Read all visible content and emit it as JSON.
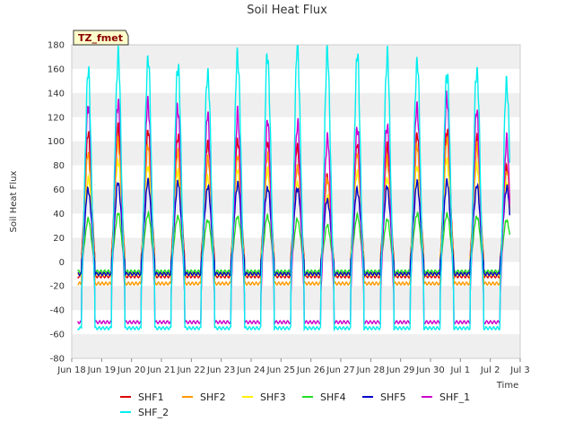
{
  "chart_data": {
    "type": "line",
    "title": "Soil Heat Flux",
    "xlabel": "Time",
    "ylabel": "Soil Heat Flux",
    "ylim": [
      -80,
      180
    ],
    "yticks": [
      -80,
      -60,
      -40,
      -20,
      0,
      20,
      40,
      60,
      80,
      100,
      120,
      140,
      160,
      180
    ],
    "xlim": [
      0,
      15
    ],
    "xticks": [
      {
        "pos": 0,
        "label": "Jun 18"
      },
      {
        "pos": 1,
        "label": "Jun 19"
      },
      {
        "pos": 2,
        "label": "Jun 20"
      },
      {
        "pos": 3,
        "label": "Jun 21"
      },
      {
        "pos": 4,
        "label": "Jun 22"
      },
      {
        "pos": 5,
        "label": "Jun 23"
      },
      {
        "pos": 6,
        "label": "Jun 24"
      },
      {
        "pos": 7,
        "label": "Jun 25"
      },
      {
        "pos": 8,
        "label": "Jun 26"
      },
      {
        "pos": 9,
        "label": "Jun 27"
      },
      {
        "pos": 10,
        "label": "Jun 28"
      },
      {
        "pos": 11,
        "label": "Jun 29"
      },
      {
        "pos": 12,
        "label": "Jun 30"
      },
      {
        "pos": 13,
        "label": "Jul 1"
      },
      {
        "pos": 14,
        "label": "Jul 2"
      },
      {
        "pos": 15,
        "label": "Jul 3"
      }
    ],
    "data_start": 0.2,
    "data_end": 14.65,
    "annotation": "TZ_fmet",
    "grid": "horizontal bands",
    "legend_position": "bottom",
    "daily_peaks_x": [
      0.55,
      1.55,
      2.55,
      3.55,
      4.55,
      5.55,
      6.55,
      7.55,
      8.55,
      9.55,
      10.55,
      11.55,
      12.55,
      13.55,
      14.55
    ],
    "series": [
      {
        "name": "SHF1",
        "color": "#dd0000",
        "night": -12,
        "peaks": [
          105,
          110,
          108,
          105,
          100,
          102,
          100,
          95,
          70,
          96,
          95,
          105,
          110,
          105,
          80
        ]
      },
      {
        "name": "SHF2",
        "color": "#ff9900",
        "night": -18,
        "peaks": [
          90,
          100,
          95,
          90,
          85,
          88,
          90,
          80,
          70,
          90,
          85,
          95,
          100,
          95,
          75
        ]
      },
      {
        "name": "SHF3",
        "color": "#ffee00",
        "night": -10,
        "peaks": [
          70,
          85,
          80,
          75,
          70,
          75,
          75,
          65,
          55,
          75,
          70,
          80,
          85,
          80,
          65
        ]
      },
      {
        "name": "SHF4",
        "color": "#22dd22",
        "night": -8,
        "peaks": [
          35,
          40,
          40,
          38,
          35,
          38,
          38,
          35,
          30,
          38,
          35,
          40,
          40,
          38,
          35
        ]
      },
      {
        "name": "SHF5",
        "color": "#0000cc",
        "night": -10,
        "peaks": [
          60,
          65,
          66,
          65,
          62,
          65,
          62,
          62,
          52,
          60,
          62,
          65,
          66,
          63,
          62
        ]
      },
      {
        "name": "SHF_1",
        "color": "#cc00cc",
        "night": -50,
        "peaks": [
          132,
          135,
          134,
          128,
          121,
          121,
          115,
          114,
          104,
          113,
          115,
          130,
          137,
          124,
          100
        ]
      },
      {
        "name": "SHF_2",
        "color": "#00eeee",
        "night": -55,
        "peaks": [
          157,
          171,
          170,
          165,
          159,
          173,
          171,
          177,
          172,
          170,
          171,
          167,
          159,
          161,
          150
        ]
      }
    ]
  }
}
